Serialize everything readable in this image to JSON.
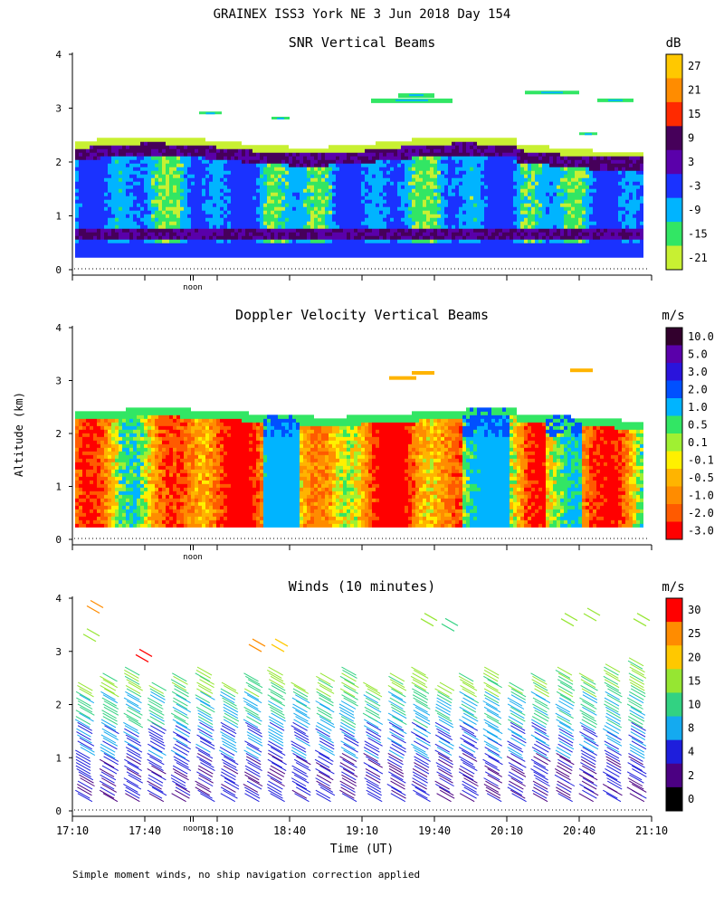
{
  "title": "GRAINEX ISS3 York NE   3 Jun 2018 Day 154",
  "ylabel": "Altitude (km)",
  "xlabel": "Time (UT)",
  "footnote": "Simple moment winds, no ship navigation correction applied",
  "noon_label": "noon",
  "chart_data": [
    {
      "type": "heatmap",
      "title": "SNR Vertical Beams",
      "units": "dB",
      "ylim": [
        0,
        4
      ],
      "y_ticks": [
        "0",
        "1",
        "2",
        "3",
        "4"
      ],
      "colorbar": {
        "labels": [
          "27",
          "21",
          "15",
          "9",
          "3",
          "-3",
          "-9",
          "-15",
          "-21"
        ],
        "colors": [
          "#ffc800",
          "#ff8c00",
          "#ff2a00",
          "#46005a",
          "#5a00aa",
          "#1a32ff",
          "#00b4ff",
          "#32e664",
          "#c8f032"
        ]
      }
    },
    {
      "type": "heatmap",
      "title": "Doppler Velocity Vertical Beams",
      "units": "m/s",
      "ylim": [
        0,
        4
      ],
      "y_ticks": [
        "0",
        "1",
        "2",
        "3",
        "4"
      ],
      "colorbar": {
        "labels": [
          "10.0",
          "5.0",
          "3.0",
          "2.0",
          "1.0",
          "0.5",
          "0.1",
          "-0.1",
          "-0.5",
          "-1.0",
          "-2.0",
          "-3.0"
        ],
        "colors": [
          "#32002d",
          "#5a00aa",
          "#2a14dc",
          "#0050ff",
          "#00b4ff",
          "#32e664",
          "#a0f032",
          "#fff000",
          "#ffb400",
          "#ff8c00",
          "#ff5a00",
          "#ff0000"
        ]
      }
    },
    {
      "type": "wind-barbs",
      "title": "Winds (10 minutes)",
      "units": "m/s",
      "ylim": [
        0,
        4
      ],
      "y_ticks": [
        "0",
        "1",
        "2",
        "3",
        "4"
      ],
      "x_ticks": [
        "17:10",
        "17:40",
        "18:10",
        "18:40",
        "19:10",
        "19:40",
        "20:10",
        "20:40",
        "21:10"
      ],
      "colorbar": {
        "labels": [
          "30",
          "25",
          "20",
          "15",
          "10",
          "8",
          "4",
          "2",
          "0"
        ],
        "colors": [
          "#ff0000",
          "#ff8c00",
          "#ffc800",
          "#96e632",
          "#32d282",
          "#14aaf0",
          "#1e1edc",
          "#4b0082",
          "#000000"
        ]
      }
    }
  ]
}
